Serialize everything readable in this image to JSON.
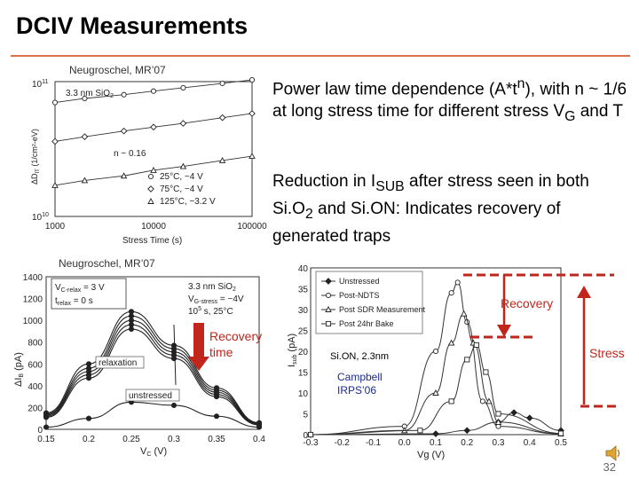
{
  "slide": {
    "title": "DCIV Measurements",
    "page_number": "32"
  },
  "bullets": {
    "b1_pre": "Power law time dependence (A*t",
    "b1_sup": "n",
    "b1_post": "), with n ~ 1/6 at long stress time for different stress V",
    "b1_sub": "G",
    "b1_end": " and T",
    "b2_pre": "Reduction in I",
    "b2_sub": "SUB",
    "b2_mid": " after stress seen in both Si.O",
    "b2_sub2": "2",
    "b2_end": " and Si.ON: Indicates recovery of generated traps"
  },
  "citations": {
    "top": "Neugroschel, MR’07",
    "middle": "Neugroschel, MR’07",
    "campbell_1": "Campbell",
    "campbell_2": "IRPS’06"
  },
  "chart1": {
    "ylabel": "ΔD",
    "ylabel_sub": "IT",
    "ylabel_unit": " (1/cm²-eV)",
    "xlabel": "Stress Time (s)",
    "y_top": "10",
    "y_top_exp": "11",
    "y_bot": "10",
    "y_bot_exp": "10",
    "inset_label": "3.3 nm SiO",
    "inset_label_sub": "2",
    "n_label": "n ~ 0.16",
    "legend": [
      "25°C, −4 V",
      "75°C, −4 V",
      "125°C, −3.2 V"
    ]
  },
  "chart2": {
    "ylabel": "ΔI",
    "ylabel_sub": "B",
    "ylabel_unit": " (pA)",
    "xlabel": "V",
    "xlabel_sub": "C",
    "xlabel_unit": " (V)",
    "info_left_1": "V",
    "info_left_1_sub": "C-relax",
    "info_left_1_val": " = 3 V",
    "info_left_2": "t",
    "info_left_2_sub": "relax",
    "info_left_2_val": " = 0 s",
    "info_right_1": "3.3 nm SiO",
    "info_right_1_sub": "2",
    "info_right_2": "V",
    "info_right_2_sub": "G-stress",
    "info_right_2_val": " = −4V",
    "info_right_3": "10",
    "info_right_3_sup": "5",
    "info_right_3_val": " s, 25°C",
    "relaxation": "relaxation",
    "unstressed": "unstressed",
    "recovery_time_1": "Recovery",
    "recovery_time_2": "time"
  },
  "chart3": {
    "ylabel": "I",
    "ylabel_sub": "sub",
    "ylabel_unit": " (pA)",
    "xlabel": "Vg (V)",
    "sample": "Si.ON, 2.3nm",
    "legend": [
      "Unstressed",
      "Post-NDTS",
      "Post SDR Measurement",
      "Post 24hr Bake"
    ],
    "recovery": "Recovery",
    "stress": "Stress"
  },
  "chart_data": [
    {
      "type": "scatter",
      "title": "",
      "xlabel": "Stress Time (s)",
      "ylabel": "ΔDIT (1/cm²-eV)",
      "x_scale": "log",
      "y_scale": "log",
      "xlim": [
        1000,
        100000
      ],
      "ylim": [
        10000000000.0,
        100000000000.0
      ],
      "x_ticks": [
        "1000",
        "10000",
        "100000"
      ],
      "series": [
        {
          "name": "25°C, −4 V",
          "x": [
            1000,
            2000,
            5000,
            10000,
            20000,
            50000,
            100000
          ],
          "y": [
            70000000000.0,
            75000000000.0,
            80000000000.0,
            85000000000.0,
            90000000000.0,
            97000000000.0,
            103000000000.0
          ]
        },
        {
          "name": "75°C, −4 V",
          "x": [
            1000,
            2000,
            5000,
            10000,
            20000,
            50000,
            100000
          ],
          "y": [
            36000000000.0,
            39000000000.0,
            43000000000.0,
            46000000000.0,
            49000000000.0,
            54000000000.0,
            58000000000.0
          ]
        },
        {
          "name": "125°C, −3.2 V",
          "x": [
            1000,
            2000,
            5000,
            10000,
            20000,
            50000,
            100000
          ],
          "y": [
            17000000000.0,
            18500000000.0,
            20000000000.0,
            22000000000.0,
            23500000000.0,
            26000000000.0,
            28000000000.0
          ]
        }
      ]
    },
    {
      "type": "line",
      "title": "",
      "xlabel": "VC (V)",
      "ylabel": "ΔIB (pA)",
      "xlim": [
        0.15,
        0.4
      ],
      "ylim": [
        0,
        1400
      ],
      "x_ticks": [
        "0.15",
        "0.2",
        "0.25",
        "0.3",
        "0.35",
        "0.4"
      ],
      "y_ticks": [
        "0",
        "200",
        "400",
        "600",
        "800",
        "1000",
        "1200",
        "1400"
      ],
      "series": [
        {
          "x": [
            0.15,
            0.2,
            0.25,
            0.3,
            0.35,
            0.4
          ],
          "y": [
            150,
            600,
            1080,
            770,
            380,
            60
          ]
        },
        {
          "x": [
            0.15,
            0.2,
            0.25,
            0.3,
            0.35,
            0.4
          ],
          "y": [
            140,
            560,
            1040,
            740,
            360,
            55
          ]
        },
        {
          "x": [
            0.15,
            0.2,
            0.25,
            0.3,
            0.35,
            0.4
          ],
          "y": [
            130,
            530,
            1000,
            710,
            340,
            50
          ]
        },
        {
          "x": [
            0.15,
            0.2,
            0.25,
            0.3,
            0.35,
            0.4
          ],
          "y": [
            120,
            500,
            960,
            680,
            320,
            45
          ]
        },
        {
          "x": [
            0.15,
            0.2,
            0.25,
            0.3,
            0.35,
            0.4
          ],
          "y": [
            110,
            470,
            920,
            650,
            300,
            40
          ]
        },
        {
          "x": [
            0.15,
            0.2,
            0.25,
            0.3,
            0.35,
            0.4
          ],
          "y": [
            20,
            100,
            250,
            220,
            120,
            20
          ]
        }
      ]
    },
    {
      "type": "line",
      "title": "",
      "xlabel": "Vg (V)",
      "ylabel": "Isub (pA)",
      "xlim": [
        -0.3,
        0.5
      ],
      "ylim": [
        0,
        40
      ],
      "x_ticks": [
        "-0.3",
        "-0.2",
        "-0.1",
        "0.0",
        "0.1",
        "0.2",
        "0.3",
        "0.4",
        "0.5"
      ],
      "y_ticks": [
        "0",
        "5",
        "10",
        "15",
        "20",
        "25",
        "30",
        "35",
        "40"
      ],
      "series": [
        {
          "name": "Unstressed",
          "x": [
            -0.3,
            0.1,
            0.2,
            0.3,
            0.35,
            0.4,
            0.5
          ],
          "y": [
            0,
            0.2,
            1,
            3,
            5.3,
            4,
            1
          ]
        },
        {
          "name": "Post-NDTS",
          "x": [
            -0.3,
            0.0,
            0.1,
            0.15,
            0.17,
            0.2,
            0.25,
            0.3,
            0.5
          ],
          "y": [
            0,
            2,
            20,
            34,
            36.5,
            27,
            8,
            2,
            0.2
          ]
        },
        {
          "name": "Post SDR Measurement",
          "x": [
            -0.3,
            0.0,
            0.1,
            0.15,
            0.19,
            0.22,
            0.27,
            0.3,
            0.5
          ],
          "y": [
            0,
            1,
            10,
            22,
            29,
            22,
            8,
            3,
            0.2
          ]
        },
        {
          "name": "Post 24hr Bake",
          "x": [
            -0.3,
            0.05,
            0.15,
            0.2,
            0.23,
            0.26,
            0.3,
            0.5
          ],
          "y": [
            0,
            1,
            8,
            18,
            21.5,
            15,
            5,
            0.3
          ]
        }
      ]
    }
  ]
}
